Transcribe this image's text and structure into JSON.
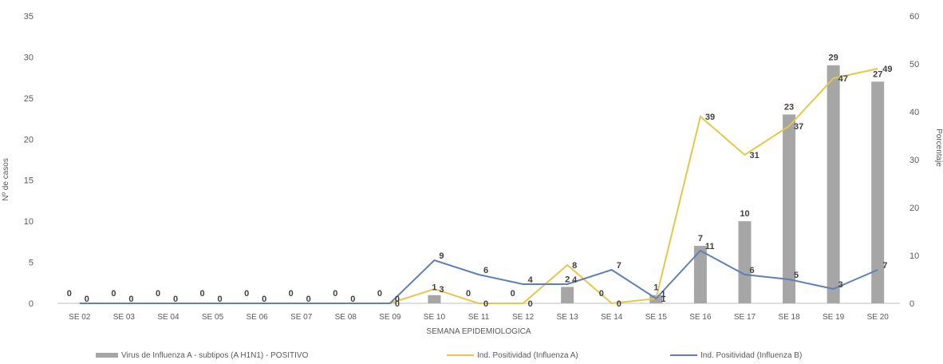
{
  "chart_data": {
    "type": "bar",
    "categories": [
      "SE 02",
      "SE 03",
      "SE 04",
      "SE 05",
      "SE 06",
      "SE 07",
      "SE 08",
      "SE 09",
      "SE 10",
      "SE 11",
      "SE 12",
      "SE 13",
      "SE 14",
      "SE 15",
      "SE 16",
      "SE 17",
      "SE 18",
      "SE 19",
      "SE 20"
    ],
    "xlabel": "SEMANA EPIDEMIOLOGICA",
    "ylabel": "Nº de casos",
    "y2label": "Porcentaje",
    "ylim": [
      0,
      35
    ],
    "y_ticks": [
      0,
      5,
      10,
      15,
      20,
      25,
      30,
      35
    ],
    "y2lim": [
      0,
      60
    ],
    "y2_ticks": [
      0,
      10,
      20,
      30,
      40,
      50,
      60
    ],
    "series": [
      {
        "name": "Virus de Influenza A - subtipos (A H1N1) - POSITIVO",
        "type": "bar",
        "axis": "left",
        "color": "#a6a6a6",
        "values": [
          0,
          0,
          0,
          0,
          0,
          0,
          0,
          0,
          1,
          0,
          0,
          2,
          0,
          1,
          7,
          10,
          23,
          29,
          27
        ],
        "labels": [
          "0",
          "0",
          "0",
          "0",
          "0",
          "0",
          "0",
          "0",
          "1",
          "0",
          "0",
          "2",
          "0",
          "1",
          "7",
          "10",
          "23",
          "29",
          "27"
        ]
      },
      {
        "name": "Ind. Positividad (Influenza A)",
        "type": "line",
        "axis": "right",
        "color": "#e4c84a",
        "values": [
          null,
          null,
          null,
          null,
          null,
          null,
          null,
          0,
          3,
          0,
          0,
          8,
          0,
          1,
          39,
          31,
          37,
          47,
          49
        ],
        "labels": [
          "",
          "",
          "",
          "",
          "",
          "",
          "",
          "0",
          "3",
          "0",
          "0",
          "8",
          "0",
          "1",
          "39",
          "31",
          "37",
          "47",
          "49"
        ]
      },
      {
        "name": "Ind. Positividad (Influenza B)",
        "type": "line",
        "axis": "right",
        "color": "#5f7fb5",
        "values": [
          0,
          0,
          0,
          0,
          0,
          0,
          0,
          0,
          9,
          6,
          4,
          4,
          7,
          1,
          11,
          6,
          5,
          3,
          7
        ],
        "labels": [
          "0",
          "0",
          "0",
          "0",
          "0",
          "0",
          "0",
          "0",
          "9",
          "6",
          "4",
          "4",
          "7",
          "1",
          "11",
          "6",
          "5",
          "3",
          "7"
        ]
      }
    ],
    "legend_position": "bottom",
    "grid": false
  }
}
